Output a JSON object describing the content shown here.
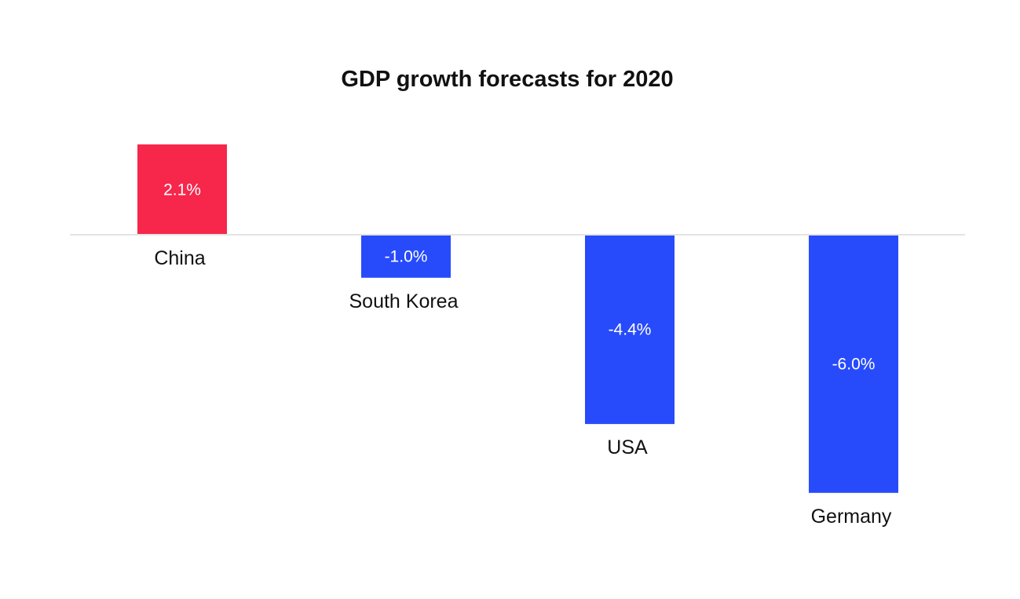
{
  "chart_data": {
    "type": "bar",
    "title": "GDP growth forecasts for 2020",
    "categories": [
      "China",
      "South Korea",
      "USA",
      "Germany"
    ],
    "values": [
      2.1,
      -1.0,
      -4.4,
      -6.0
    ],
    "value_labels": [
      "2.1%",
      "-1.0%",
      "-4.4%",
      "-6.0%"
    ],
    "xlabel": "",
    "ylabel": "",
    "ylim": [
      -6.0,
      2.1
    ],
    "grid": false,
    "legend": "none",
    "colors": {
      "positive": "#f7264b",
      "negative": "#274bfb",
      "baseline": "#e3e3e3",
      "text": "#111111",
      "value_text": "#ffffff"
    }
  }
}
